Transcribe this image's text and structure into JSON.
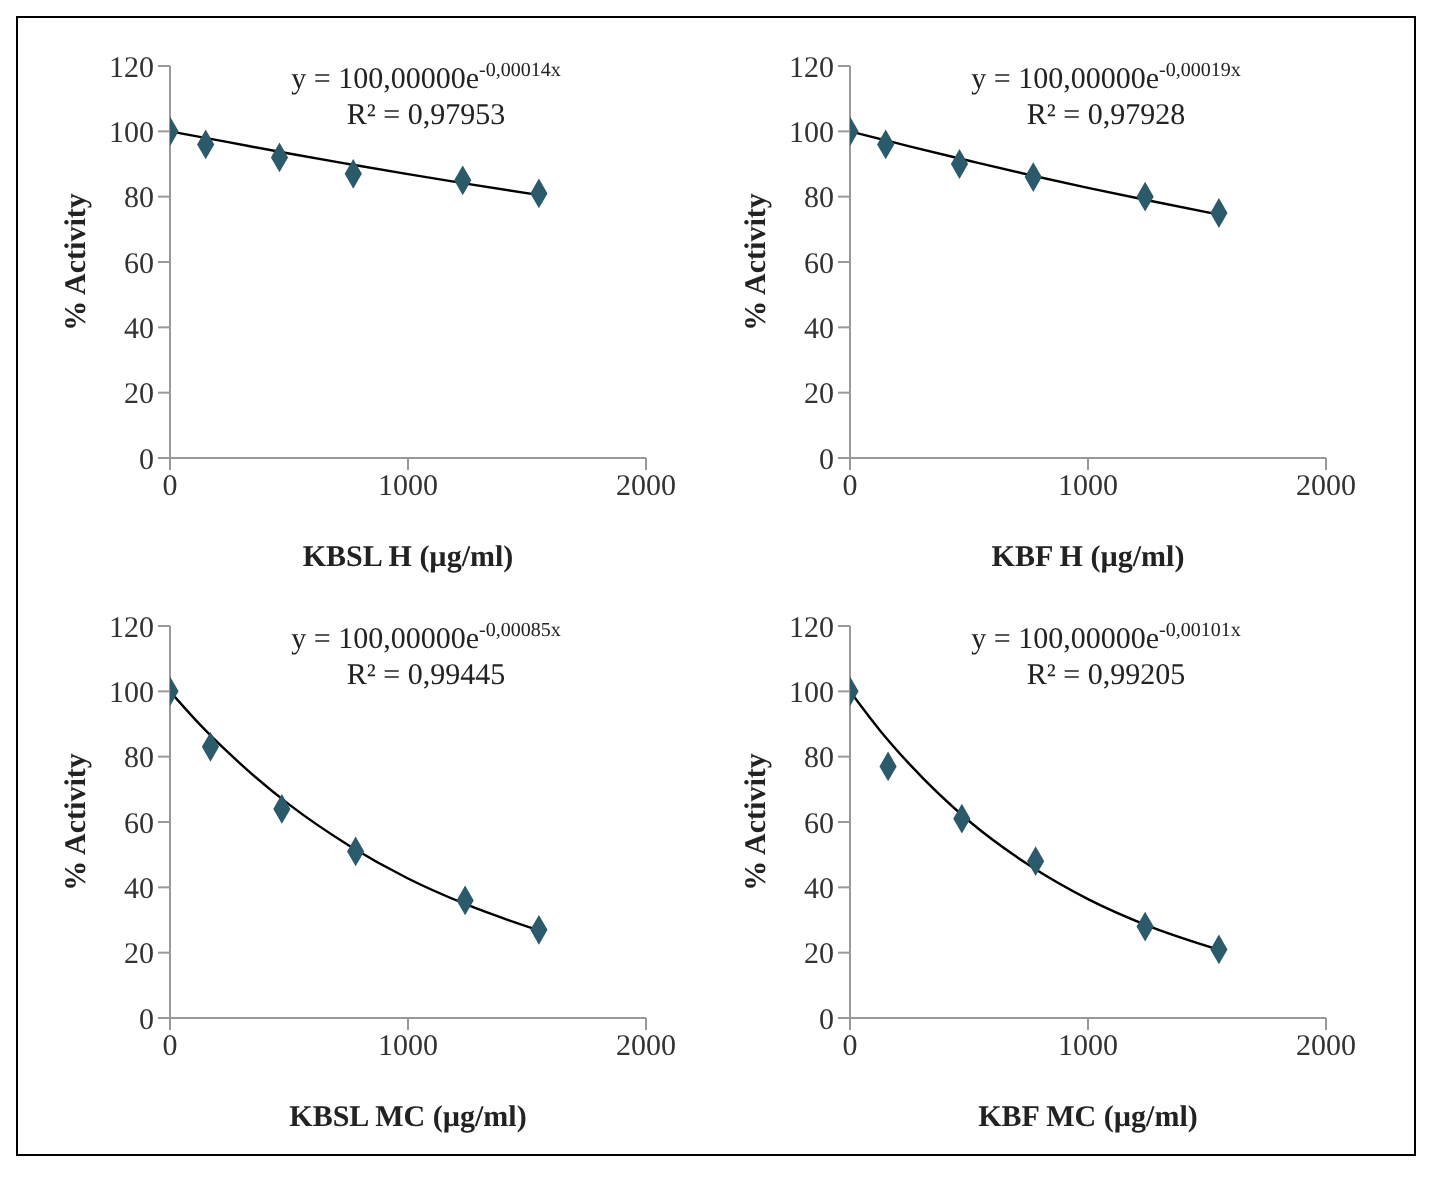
{
  "chart_data": [
    {
      "type": "scatter",
      "xlabel": "KBSL H (µg/ml)",
      "ylabel": "% Activity",
      "xlim": [
        0,
        2000
      ],
      "xticks": [
        0,
        1000,
        2000
      ],
      "ylim": [
        0,
        120
      ],
      "yticks": [
        0,
        20,
        40,
        60,
        80,
        100,
        120
      ],
      "grid": false,
      "legend": false,
      "marker": "diamond",
      "annotations": [
        "y = 100,00000e$^{-0,00014x}$",
        "R² = 0,97953"
      ],
      "x": [
        0,
        150,
        460,
        770,
        1230,
        1550
      ],
      "series": [
        {
          "color": "#2b5a6b",
          "values": [
            100,
            96,
            92,
            87,
            85,
            81
          ]
        },
        {
          "type": "line",
          "color": "#000000",
          "marker": "none",
          "x": [
            0,
            125,
            250,
            500,
            750,
            1000,
            1250,
            1550
          ],
          "values": [
            100,
            98.3,
            96.6,
            93.2,
            90.0,
            86.9,
            83.9,
            80.5
          ]
        }
      ]
    },
    {
      "type": "scatter",
      "xlabel": "KBF H (µg/ml)",
      "ylabel": "% Activity",
      "xlim": [
        0,
        2000
      ],
      "xticks": [
        0,
        1000,
        2000
      ],
      "ylim": [
        0,
        120
      ],
      "yticks": [
        0,
        20,
        40,
        60,
        80,
        100,
        120
      ],
      "grid": false,
      "legend": false,
      "marker": "diamond",
      "annotations": [
        "y = 100,00000e$^{-0,00019x}$",
        "R² = 0,97928"
      ],
      "x": [
        0,
        150,
        460,
        770,
        1240,
        1550
      ],
      "series": [
        {
          "color": "#2b5a6b",
          "values": [
            100,
            96,
            90,
            86,
            80,
            75
          ]
        },
        {
          "type": "line",
          "color": "#000000",
          "marker": "none",
          "x": [
            0,
            125,
            250,
            500,
            750,
            1000,
            1250,
            1550
          ],
          "values": [
            100,
            97.7,
            95.4,
            91.0,
            86.7,
            82.7,
            78.9,
            74.5
          ]
        }
      ]
    },
    {
      "type": "scatter",
      "xlabel": "KBSL MC (µg/ml)",
      "ylabel": "% Activity",
      "xlim": [
        0,
        2000
      ],
      "xticks": [
        0,
        1000,
        2000
      ],
      "ylim": [
        0,
        120
      ],
      "yticks": [
        0,
        20,
        40,
        60,
        80,
        100,
        120
      ],
      "grid": false,
      "legend": false,
      "marker": "diamond",
      "annotations": [
        "y = 100,00000e$^{-0,00085x}$",
        "R² = 0,99445"
      ],
      "x": [
        0,
        170,
        470,
        780,
        1240,
        1550
      ],
      "series": [
        {
          "color": "#2b5a6b",
          "values": [
            100,
            83,
            64,
            51,
            36,
            27
          ]
        },
        {
          "type": "line",
          "color": "#000000",
          "marker": "none",
          "x": [
            0,
            125,
            250,
            500,
            750,
            1000,
            1250,
            1550
          ],
          "values": [
            100,
            89.9,
            80.9,
            65.4,
            52.9,
            42.7,
            34.6,
            26.8
          ]
        }
      ]
    },
    {
      "type": "scatter",
      "xlabel": "KBF MC (µg/ml)",
      "ylabel": "% Activity",
      "xlim": [
        0,
        2000
      ],
      "xticks": [
        0,
        1000,
        2000
      ],
      "ylim": [
        0,
        120
      ],
      "yticks": [
        0,
        20,
        40,
        60,
        80,
        100,
        120
      ],
      "grid": false,
      "legend": false,
      "marker": "diamond",
      "annotations": [
        "y = 100,00000e$^{-0,00101x}$",
        "R² = 0,99205"
      ],
      "x": [
        0,
        160,
        470,
        780,
        1240,
        1550
      ],
      "series": [
        {
          "color": "#2b5a6b",
          "values": [
            100,
            77,
            61,
            48,
            28,
            21
          ]
        },
        {
          "type": "line",
          "color": "#000000",
          "marker": "none",
          "x": [
            0,
            125,
            250,
            500,
            750,
            1000,
            1250,
            1550
          ],
          "values": [
            100,
            88.1,
            77.7,
            60.3,
            46.9,
            36.4,
            28.3,
            20.9
          ]
        }
      ]
    }
  ]
}
